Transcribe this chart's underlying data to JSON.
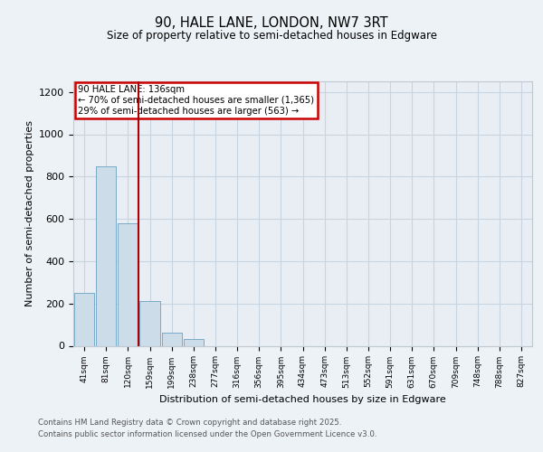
{
  "title1": "90, HALE LANE, LONDON, NW7 3RT",
  "title2": "Size of property relative to semi-detached houses in Edgware",
  "xlabel": "Distribution of semi-detached houses by size in Edgware",
  "ylabel": "Number of semi-detached properties",
  "bins": [
    "41sqm",
    "81sqm",
    "120sqm",
    "159sqm",
    "199sqm",
    "238sqm",
    "277sqm",
    "316sqm",
    "356sqm",
    "395sqm",
    "434sqm",
    "473sqm",
    "513sqm",
    "552sqm",
    "591sqm",
    "631sqm",
    "670sqm",
    "709sqm",
    "748sqm",
    "788sqm",
    "827sqm"
  ],
  "bar_values": [
    250,
    850,
    580,
    210,
    60,
    30,
    0,
    0,
    0,
    0,
    0,
    0,
    0,
    0,
    0,
    0,
    0,
    0,
    0,
    0,
    0
  ],
  "bar_color": "#ccdce8",
  "bar_edge_color": "#7aaac8",
  "property_line_color": "#aa0000",
  "annotation_title": "90 HALE LANE: 136sqm",
  "annotation_line1": "← 70% of semi-detached houses are smaller (1,365)",
  "annotation_line2": "29% of semi-detached houses are larger (563) →",
  "annotation_box_color": "#cc0000",
  "ylim": [
    0,
    1250
  ],
  "yticks": [
    0,
    200,
    400,
    600,
    800,
    1000,
    1200
  ],
  "footer1": "Contains HM Land Registry data © Crown copyright and database right 2025.",
  "footer2": "Contains public sector information licensed under the Open Government Licence v3.0.",
  "bg_color": "#edf2f7",
  "plot_bg_color": "#e8eef4",
  "grid_color": "#c8d4e0"
}
